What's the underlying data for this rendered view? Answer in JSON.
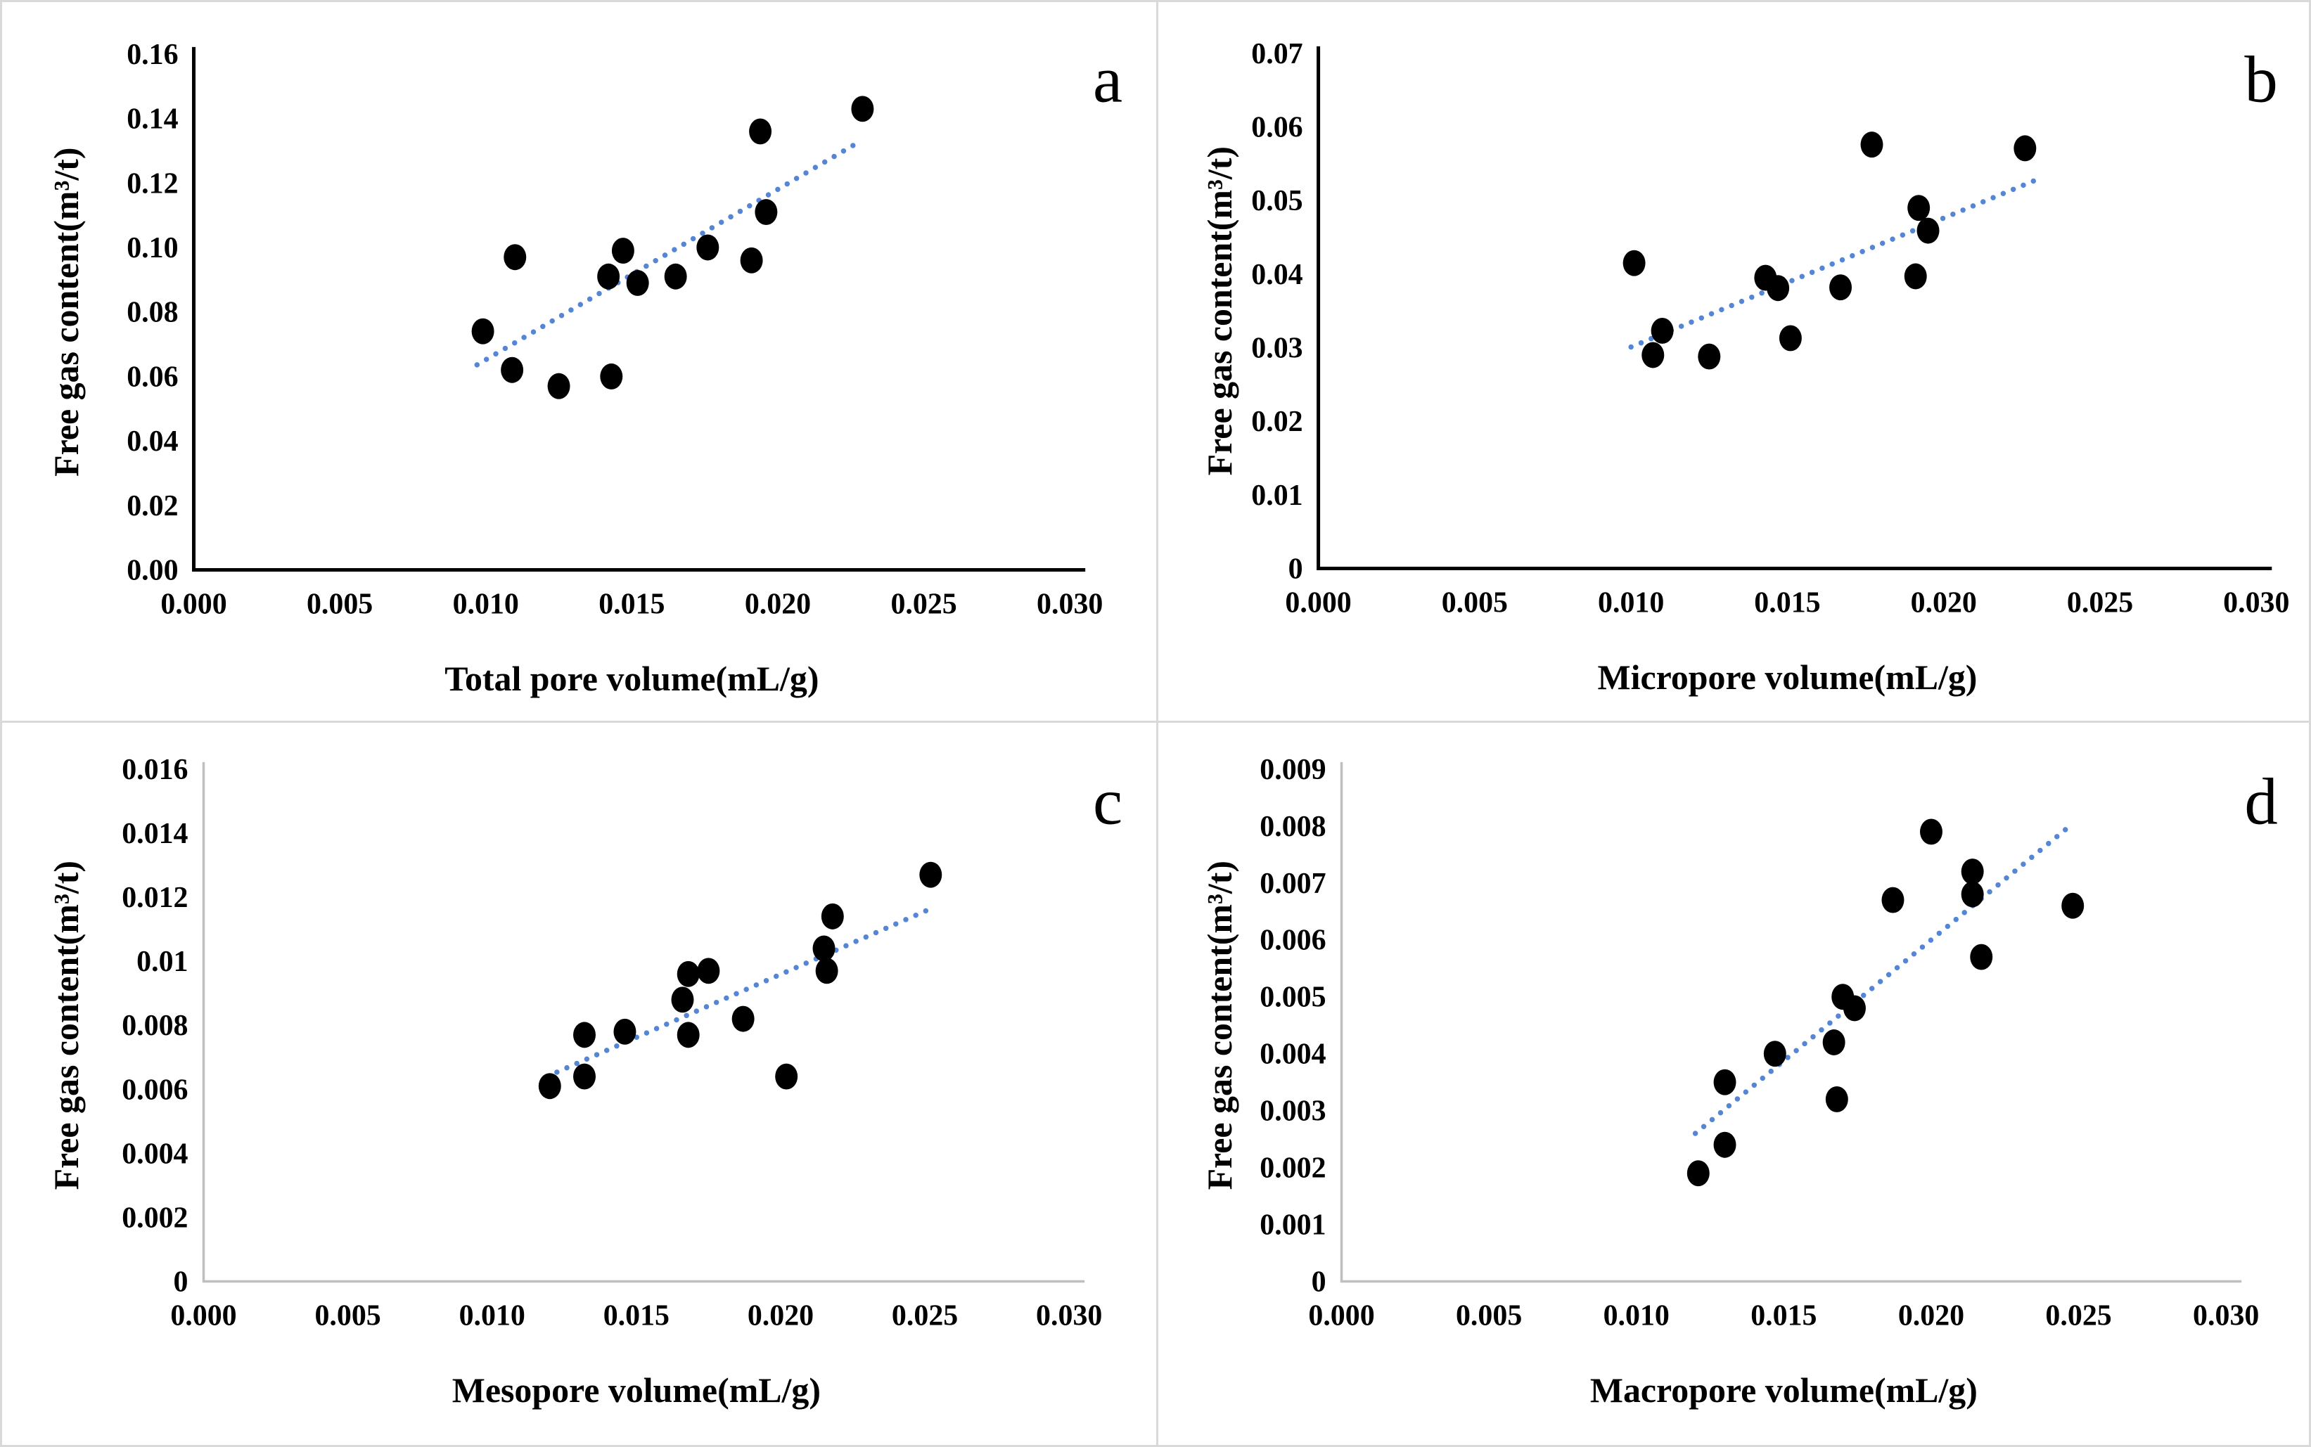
{
  "figure": {
    "background": "#ffffff",
    "border_color": "#d9d9d9",
    "point_color": "#000000",
    "trend_color": "#5585d5",
    "text_color": "#000000"
  },
  "chart_data": [
    {
      "type": "scatter",
      "panel_label": "a",
      "xlabel": "Total pore volume(mL/g)",
      "ylabel": "Free gas content(m³/t)",
      "xlim": [
        0,
        0.03
      ],
      "ylim": [
        0,
        0.16
      ],
      "x_ticks": [
        "0.000",
        "0.005",
        "0.010",
        "0.015",
        "0.020",
        "0.025",
        "0.030"
      ],
      "y_ticks": [
        "0.00",
        "0.02",
        "0.04",
        "0.06",
        "0.08",
        "0.10",
        "0.12",
        "0.14",
        "0.16"
      ],
      "axis_color": "#000000",
      "axis_width": 5,
      "grid": false,
      "legend": null,
      "points": [
        [
          0.0099,
          0.074
        ],
        [
          0.0109,
          0.062
        ],
        [
          0.011,
          0.097
        ],
        [
          0.0125,
          0.057
        ],
        [
          0.0142,
          0.091
        ],
        [
          0.0143,
          0.06
        ],
        [
          0.0147,
          0.099
        ],
        [
          0.0152,
          0.089
        ],
        [
          0.0165,
          0.091
        ],
        [
          0.0176,
          0.1
        ],
        [
          0.0191,
          0.096
        ],
        [
          0.0194,
          0.136
        ],
        [
          0.0196,
          0.111
        ],
        [
          0.0229,
          0.143
        ]
      ],
      "trend": {
        "x1": 0.0097,
        "y1": 0.0636,
        "x2": 0.0227,
        "y2": 0.1323
      }
    },
    {
      "type": "scatter",
      "panel_label": "b",
      "xlabel": "Micropore volume(mL/g)",
      "ylabel": "Free gas content(m³/t)",
      "xlim": [
        0,
        0.03
      ],
      "ylim": [
        0,
        0.07
      ],
      "x_ticks": [
        "0.000",
        "0.005",
        "0.010",
        "0.015",
        "0.020",
        "0.025",
        "0.030"
      ],
      "y_ticks": [
        "0",
        "0.01",
        "0.02",
        "0.03",
        "0.04",
        "0.05",
        "0.06",
        "0.07"
      ],
      "axis_color": "#000000",
      "axis_width": 5,
      "grid": false,
      "legend": null,
      "points": [
        [
          0.0101,
          0.0415
        ],
        [
          0.0107,
          0.029
        ],
        [
          0.011,
          0.0323
        ],
        [
          0.0125,
          0.0288
        ],
        [
          0.0143,
          0.0395
        ],
        [
          0.0147,
          0.0381
        ],
        [
          0.0151,
          0.0313
        ],
        [
          0.0167,
          0.0382
        ],
        [
          0.0177,
          0.0576
        ],
        [
          0.0191,
          0.0397
        ],
        [
          0.0192,
          0.049
        ],
        [
          0.0195,
          0.0459
        ],
        [
          0.0226,
          0.0571
        ]
      ],
      "trend": {
        "x1": 0.01,
        "y1": 0.0301,
        "x2": 0.0229,
        "y2": 0.0527
      }
    },
    {
      "type": "scatter",
      "panel_label": "c",
      "xlabel": "Mesopore volume(mL/g)",
      "ylabel": "Free gas content(m³/t)",
      "xlim": [
        0,
        0.03
      ],
      "ylim": [
        0,
        0.016
      ],
      "x_ticks": [
        "0.000",
        "0.005",
        "0.010",
        "0.015",
        "0.020",
        "0.025",
        "0.030"
      ],
      "y_ticks": [
        "0",
        "0.002",
        "0.004",
        "0.006",
        "0.008",
        "0.01",
        "0.012",
        "0.014",
        "0.016"
      ],
      "axis_color": "#bfbfbf",
      "axis_width": 3.5,
      "grid": false,
      "legend": null,
      "points": [
        [
          0.012,
          0.0061
        ],
        [
          0.0132,
          0.0064
        ],
        [
          0.0132,
          0.0077
        ],
        [
          0.0146,
          0.0078
        ],
        [
          0.0166,
          0.0088
        ],
        [
          0.0168,
          0.0077
        ],
        [
          0.0168,
          0.0096
        ],
        [
          0.0175,
          0.0097
        ],
        [
          0.0187,
          0.0082
        ],
        [
          0.0202,
          0.0064
        ],
        [
          0.0215,
          0.0104
        ],
        [
          0.0216,
          0.0097
        ],
        [
          0.0218,
          0.0114
        ],
        [
          0.0252,
          0.0127
        ]
      ],
      "trend": {
        "x1": 0.0119,
        "y1": 0.0064,
        "x2": 0.0251,
        "y2": 0.0116
      }
    },
    {
      "type": "scatter",
      "panel_label": "d",
      "xlabel": "Macropore volume(mL/g)",
      "ylabel": "Free gas content(m³/t)",
      "xlim": [
        0,
        0.03
      ],
      "ylim": [
        0,
        0.009
      ],
      "x_ticks": [
        "0.000",
        "0.005",
        "0.010",
        "0.015",
        "0.020",
        "0.025",
        "0.030"
      ],
      "y_ticks": [
        "0",
        "0.001",
        "0.002",
        "0.003",
        "0.004",
        "0.005",
        "0.006",
        "0.007",
        "0.008",
        "0.009"
      ],
      "axis_color": "#bfbfbf",
      "axis_width": 3.5,
      "grid": false,
      "legend": null,
      "points": [
        [
          0.0121,
          0.0019
        ],
        [
          0.013,
          0.0024
        ],
        [
          0.013,
          0.0035
        ],
        [
          0.0147,
          0.004
        ],
        [
          0.0167,
          0.0042
        ],
        [
          0.0168,
          0.0032
        ],
        [
          0.017,
          0.005
        ],
        [
          0.0174,
          0.0048
        ],
        [
          0.0187,
          0.0067
        ],
        [
          0.02,
          0.0079
        ],
        [
          0.0214,
          0.0072
        ],
        [
          0.0214,
          0.0068
        ],
        [
          0.0217,
          0.0057
        ],
        [
          0.0248,
          0.0066
        ]
      ],
      "trend": {
        "x1": 0.012,
        "y1": 0.0026,
        "x2": 0.0247,
        "y2": 0.008
      }
    }
  ]
}
